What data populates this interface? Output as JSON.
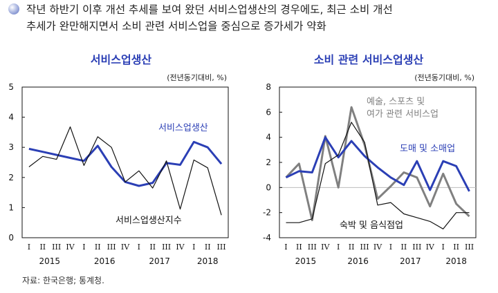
{
  "header": {
    "lines": [
      "작년 하반기 이후 개선 추세를 보여 왔던 서비스업생산의 경우에도, 최근 소비 개선",
      "추세가 완만해지면서 소비 관련 서비스업을 중심으로 증가세가 약화"
    ]
  },
  "source": "자료: 한국은행; 통계청.",
  "colors": {
    "blue": "#2b3fb5",
    "gray": "#808080",
    "black": "#111111"
  },
  "chart_data": [
    {
      "type": "line",
      "title": "서비스업생산",
      "unit": "(전년동기대비, %)",
      "categories": [
        "I",
        "II",
        "III",
        "IV",
        "I",
        "II",
        "III",
        "IV",
        "I",
        "II",
        "III",
        "IV",
        "I",
        "II",
        "III"
      ],
      "years": [
        "2015",
        "2016",
        "2017",
        "2018"
      ],
      "ylim": [
        0,
        5
      ],
      "yticks": [
        "0",
        "1",
        "2",
        "3",
        "4",
        "5"
      ],
      "series": [
        {
          "name": "서비스업생산",
          "color": "#2b3fb5",
          "values": [
            2.95,
            2.85,
            2.75,
            2.65,
            2.55,
            3.05,
            2.35,
            1.85,
            1.72,
            1.82,
            2.48,
            2.42,
            3.18,
            3.0,
            2.45
          ]
        },
        {
          "name": "서비스업생산지수",
          "color": "#111111",
          "values": [
            2.35,
            2.7,
            2.6,
            3.68,
            2.4,
            3.35,
            3.0,
            1.85,
            2.22,
            1.65,
            2.55,
            0.95,
            2.58,
            2.32,
            0.75
          ]
        }
      ]
    },
    {
      "type": "line",
      "title": "소비 관련 서비스업생산",
      "unit": "(전년동기대비, %)",
      "categories": [
        "I",
        "II",
        "III",
        "IV",
        "I",
        "II",
        "III",
        "IV",
        "I",
        "II",
        "III",
        "IV",
        "I",
        "II",
        "III"
      ],
      "years": [
        "2015",
        "2016",
        "2017",
        "2018"
      ],
      "ylim": [
        -4,
        8
      ],
      "yticks": [
        "-4",
        "-2",
        "0",
        "2",
        "4",
        "6",
        "8"
      ],
      "series": [
        {
          "name": "예술, 스포츠 및 여가 관련 서비스업",
          "color": "#808080",
          "values": [
            0.8,
            1.9,
            -2.6,
            4.1,
            0.0,
            6.4,
            3.4,
            -0.9,
            0.1,
            1.2,
            0.8,
            -1.5,
            1.1,
            -1.3,
            -2.3
          ]
        },
        {
          "name": "도매 및 소매업",
          "color": "#2b3fb5",
          "values": [
            0.8,
            1.3,
            1.2,
            4.0,
            2.4,
            3.7,
            2.5,
            1.6,
            0.8,
            0.2,
            2.1,
            -0.2,
            2.1,
            1.7,
            -0.3
          ]
        },
        {
          "name": "숙박 및 음식점업",
          "color": "#111111",
          "values": [
            -2.8,
            -2.8,
            -2.5,
            1.9,
            2.6,
            5.2,
            3.6,
            -1.4,
            -1.2,
            -2.1,
            -2.4,
            -2.7,
            -3.3,
            -2.0,
            -2.0
          ]
        }
      ]
    }
  ]
}
